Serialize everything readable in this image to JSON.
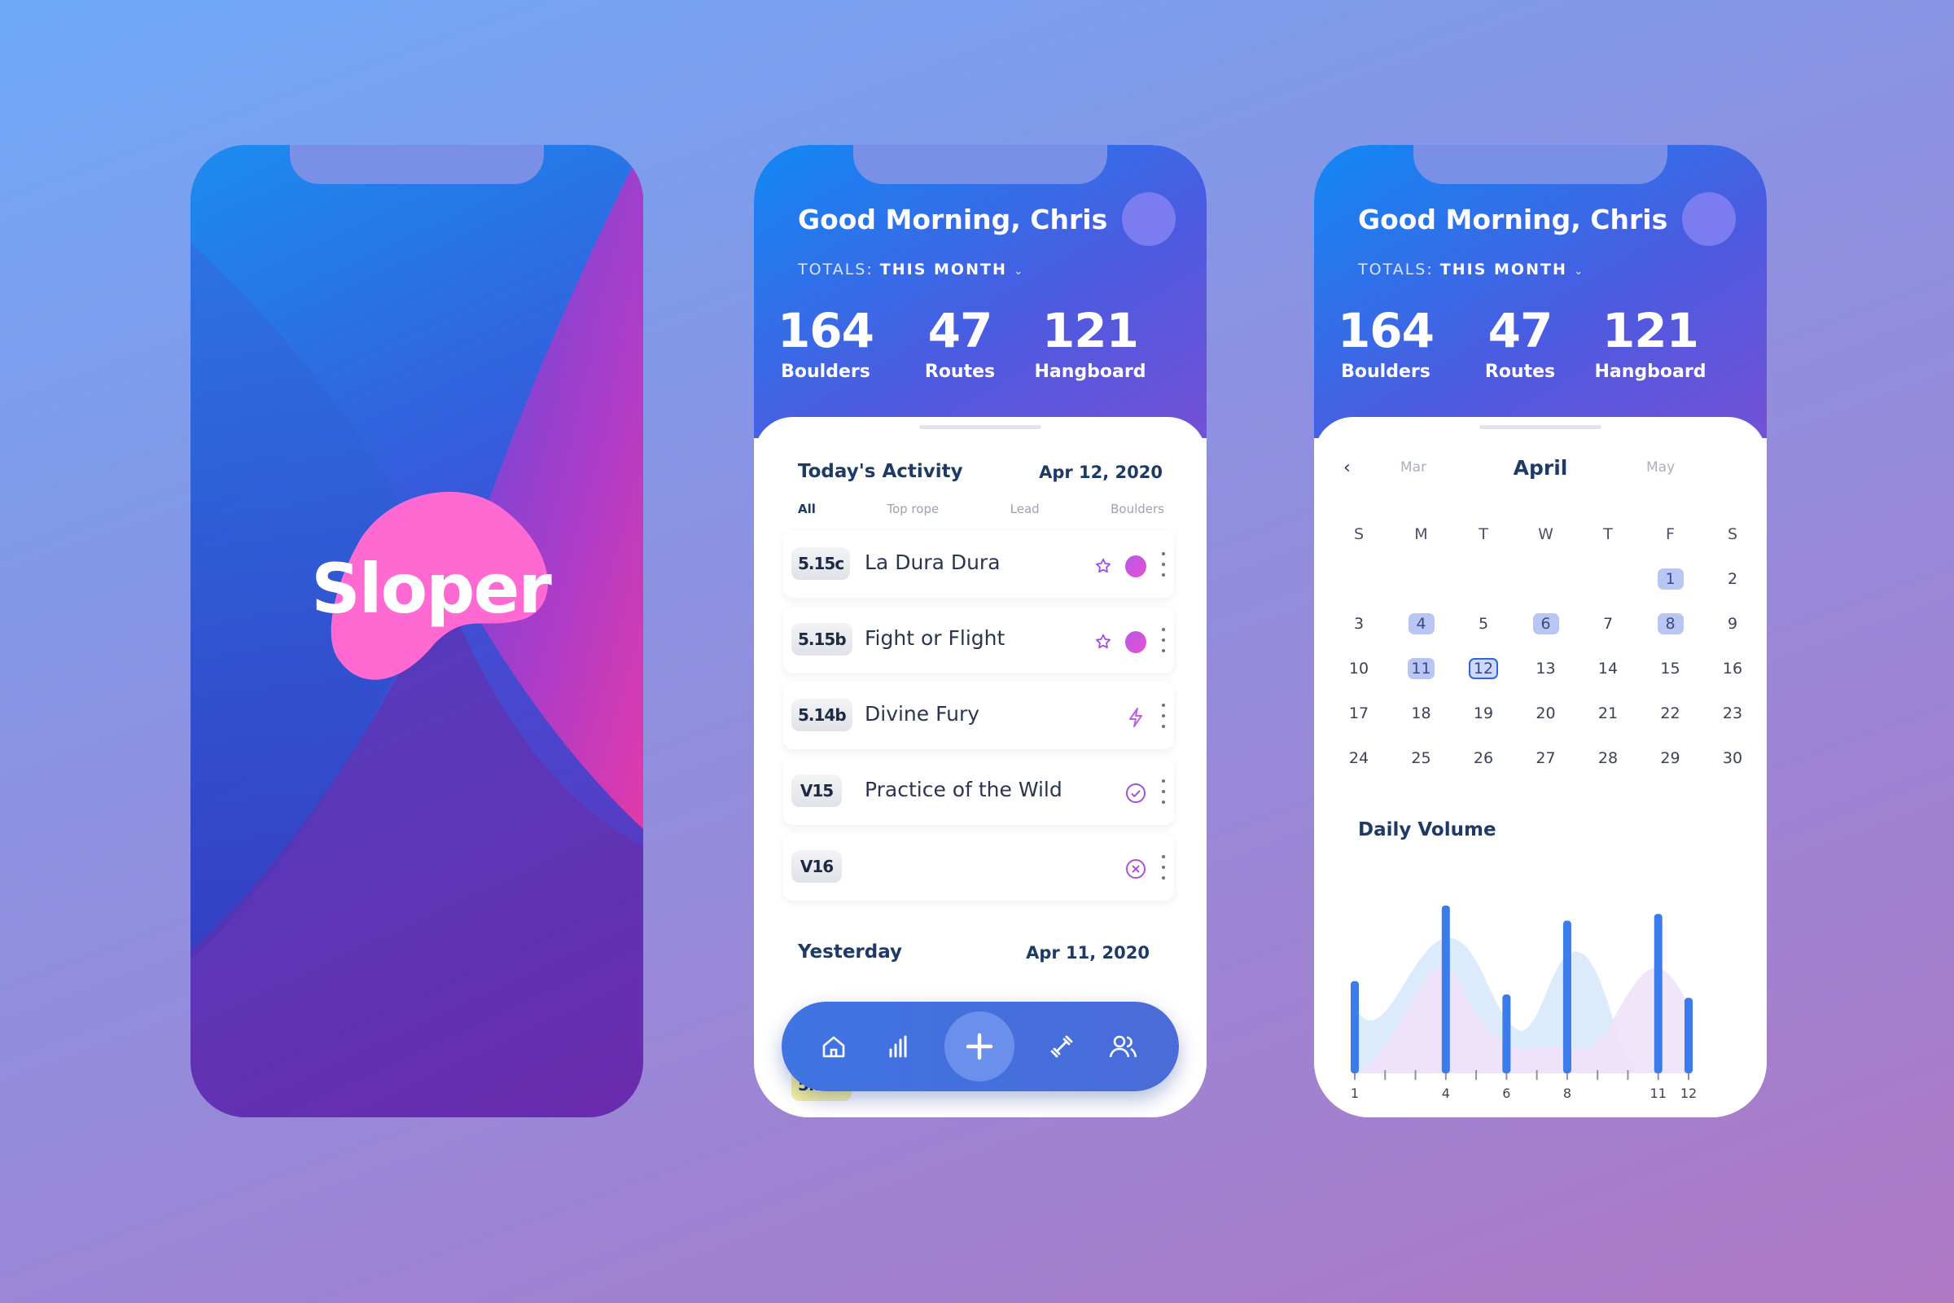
{
  "splash": {
    "logo_text": "Sloper",
    "logo_color": "#ff6ad2"
  },
  "header": {
    "greeting": "Good Morning, Chris",
    "totals_label": "TOTALS:",
    "period": "THIS MONTH",
    "stats": [
      {
        "value": "164",
        "label": "Boulders"
      },
      {
        "value": "47",
        "label": "Routes"
      },
      {
        "value": "121",
        "label": "Hangboard"
      }
    ]
  },
  "activity": {
    "today_title": "Today's Activity",
    "today_date": "Apr 12, 2020",
    "filters": [
      "All",
      "Top rope",
      "Lead",
      "Boulders"
    ],
    "rows": [
      {
        "grade": "5.15c",
        "name": "La Dura Dura",
        "icon": "star-icon"
      },
      {
        "grade": "5.15b",
        "name": "Fight or Flight",
        "icon": "star-icon"
      },
      {
        "grade": "5.14b",
        "name": "Divine Fury",
        "icon": "bolt-icon"
      },
      {
        "grade": "V15",
        "name": "Practice of the Wild",
        "icon": "check-circle-icon"
      },
      {
        "grade": "V16",
        "name": "",
        "icon": "x-circle-icon"
      }
    ],
    "yesterday_title": "Yesterday",
    "yesterday_date": "Apr 11, 2020",
    "peek_grade": "5.11a"
  },
  "nav": {
    "items": [
      "home-icon",
      "stats-icon",
      "plus-icon",
      "dumbbell-icon",
      "users-icon"
    ]
  },
  "calendar": {
    "prev": "Mar",
    "current": "April",
    "next": "May",
    "weekdays": [
      "S",
      "M",
      "T",
      "W",
      "T",
      "F",
      "S"
    ],
    "days": [
      "1",
      "2",
      "3",
      "4",
      "5",
      "6",
      "7",
      "8",
      "9",
      "10",
      "11",
      "12",
      "13",
      "14",
      "15",
      "16",
      "17",
      "18",
      "19",
      "20",
      "21",
      "22",
      "23",
      "24",
      "25",
      "26",
      "27",
      "28",
      "29",
      "30"
    ],
    "marked": [
      1,
      4,
      6,
      8,
      11
    ],
    "selected": 12
  },
  "daily_volume": {
    "title": "Daily Volume",
    "tick_labels": [
      "1",
      "4",
      "6",
      "8",
      "11",
      "12"
    ]
  },
  "chart_data": {
    "type": "bar",
    "title": "Daily Volume",
    "x": [
      1,
      4,
      6,
      8,
      11,
      12
    ],
    "values": [
      0.55,
      1.0,
      0.47,
      0.91,
      0.95,
      0.45
    ],
    "xlabel": "",
    "ylabel": "",
    "ylim": [
      0,
      1
    ],
    "grid": false,
    "bar_color": "#3b7bea",
    "area_colors": [
      "#dcebfb",
      "#efe2fa"
    ]
  }
}
